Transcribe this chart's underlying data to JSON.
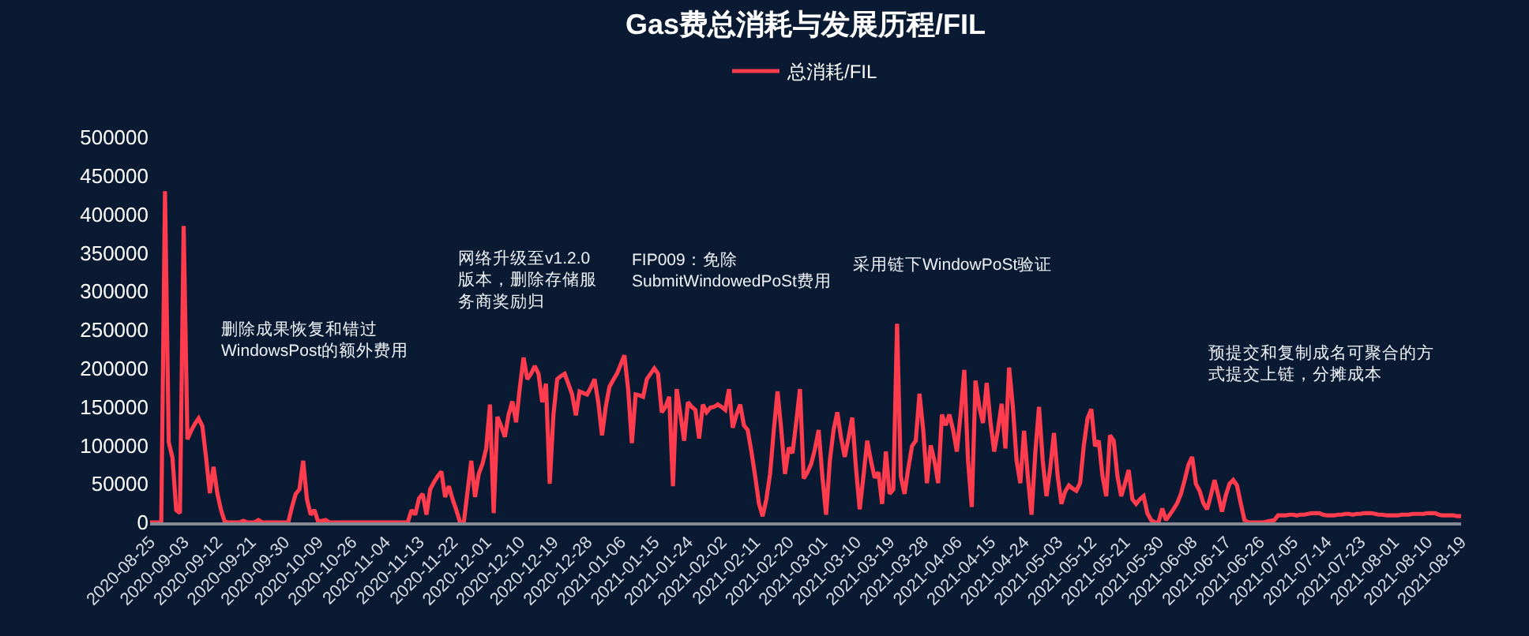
{
  "chart_data": {
    "type": "line",
    "title": "Gas费总消耗与发展历程/FIL",
    "legend": "top",
    "line_style": "solid",
    "ylim": [
      0,
      500000
    ],
    "yticks": [
      0,
      50000,
      100000,
      150000,
      200000,
      250000,
      300000,
      350000,
      400000,
      450000,
      500000
    ],
    "categories": [
      "2020-08-25",
      null,
      null,
      null,
      null,
      null,
      null,
      null,
      null,
      "2020-09-03",
      null,
      null,
      null,
      null,
      null,
      null,
      null,
      null,
      "2020-09-12",
      null,
      null,
      null,
      null,
      null,
      null,
      null,
      null,
      "2020-09-21",
      null,
      null,
      null,
      null,
      null,
      null,
      null,
      null,
      "2020-09-30",
      null,
      null,
      null,
      null,
      null,
      null,
      null,
      null,
      "2020-10-09",
      null,
      null,
      null,
      null,
      null,
      null,
      null,
      null,
      "2020-10-26",
      null,
      null,
      null,
      null,
      null,
      null,
      null,
      null,
      "2020-11-04",
      null,
      null,
      null,
      null,
      null,
      null,
      null,
      null,
      "2020-11-13",
      null,
      null,
      null,
      null,
      null,
      null,
      null,
      null,
      "2020-11-22",
      null,
      null,
      null,
      null,
      null,
      null,
      null,
      null,
      "2020-12-01",
      null,
      null,
      null,
      null,
      null,
      null,
      null,
      null,
      "2020-12-10",
      null,
      null,
      null,
      null,
      null,
      null,
      null,
      null,
      "2020-12-19",
      null,
      null,
      null,
      null,
      null,
      null,
      null,
      null,
      "2020-12-28",
      null,
      null,
      null,
      null,
      null,
      null,
      null,
      null,
      "2021-01-06",
      null,
      null,
      null,
      null,
      null,
      null,
      null,
      null,
      "2021-01-15",
      null,
      null,
      null,
      null,
      null,
      null,
      null,
      null,
      "2021-01-24",
      null,
      null,
      null,
      null,
      null,
      null,
      null,
      null,
      "2021-02-02",
      null,
      null,
      null,
      null,
      null,
      null,
      null,
      null,
      "2021-02-11",
      null,
      null,
      null,
      null,
      null,
      null,
      null,
      null,
      "2021-02-20",
      null,
      null,
      null,
      null,
      null,
      null,
      null,
      null,
      "2021-03-01",
      null,
      null,
      null,
      null,
      null,
      null,
      null,
      null,
      "2021-03-10",
      null,
      null,
      null,
      null,
      null,
      null,
      null,
      null,
      "2021-03-19",
      null,
      null,
      null,
      null,
      null,
      null,
      null,
      null,
      "2021-03-28",
      null,
      null,
      null,
      null,
      null,
      null,
      null,
      null,
      "2021-04-06",
      null,
      null,
      null,
      null,
      null,
      null,
      null,
      null,
      "2021-04-15",
      null,
      null,
      null,
      null,
      null,
      null,
      null,
      null,
      "2021-04-24",
      null,
      null,
      null,
      null,
      null,
      null,
      null,
      null,
      "2021-05-03",
      null,
      null,
      null,
      null,
      null,
      null,
      null,
      null,
      "2021-05-12",
      null,
      null,
      null,
      null,
      null,
      null,
      null,
      null,
      "2021-05-21",
      null,
      null,
      null,
      null,
      null,
      null,
      null,
      null,
      "2021-05-30",
      null,
      null,
      null,
      null,
      null,
      null,
      null,
      null,
      "2021-06-08",
      null,
      null,
      null,
      null,
      null,
      null,
      null,
      null,
      "2021-06-17",
      null,
      null,
      null,
      null,
      null,
      null,
      null,
      null,
      "2021-06-26",
      null,
      null,
      null,
      null,
      null,
      null,
      null,
      null,
      "2021-07-05",
      null,
      null,
      null,
      null,
      null,
      null,
      null,
      null,
      "2021-07-14",
      null,
      null,
      null,
      null,
      null,
      null,
      null,
      null,
      "2021-07-23",
      null,
      null,
      null,
      null,
      null,
      null,
      null,
      null,
      "2021-08-01",
      null,
      null,
      null,
      null,
      null,
      null,
      null,
      null,
      "2021-08-10",
      null,
      null,
      null,
      null,
      null,
      null,
      null,
      null,
      "2021-08-19"
    ],
    "annotations": [
      "删除成果恢复和错过WindowsPost的额外费用",
      "网络升级至v1.2.0版本，删除存储服务商奖励归",
      "FIP009：免除SubmitWindowedPoSt费用",
      "采用链下WindowPoSt验证",
      "预提交和复制成名可聚合的方式提交上链，分摊成本"
    ],
    "series": [
      {
        "name": "总消耗/FIL",
        "color": "#ff3b4e",
        "values": [
          0,
          0,
          0,
          0,
          430000,
          104000,
          84000,
          16000,
          12000,
          385000,
          108000,
          119000,
          128000,
          135000,
          125000,
          84000,
          38000,
          72000,
          38000,
          16000,
          1000,
          0,
          0,
          0,
          0,
          2000,
          0,
          0,
          0,
          3000,
          0,
          0,
          0,
          0,
          0,
          0,
          0,
          0,
          20000,
          37000,
          43000,
          80000,
          30000,
          10000,
          16000,
          1000,
          2000,
          3000,
          0,
          0,
          0,
          0,
          0,
          0,
          0,
          0,
          0,
          0,
          0,
          0,
          0,
          0,
          0,
          0,
          0,
          0,
          0,
          0,
          0,
          0,
          16000,
          10000,
          31000,
          37000,
          10000,
          43000,
          52000,
          60000,
          66000,
          33000,
          47000,
          30000,
          16000,
          0,
          0,
          40000,
          80000,
          33000,
          63000,
          76000,
          96000,
          153000,
          12000,
          137000,
          125000,
          111000,
          140000,
          157000,
          130000,
          175000,
          214000,
          186000,
          193000,
          203000,
          193000,
          156000,
          180000,
          50000,
          140000,
          186000,
          190000,
          193000,
          180000,
          166000,
          139000,
          170000,
          168000,
          166000,
          175000,
          186000,
          156000,
          113000,
          150000,
          176000,
          185000,
          193000,
          205000,
          217000,
          173000,
          103000,
          166000,
          165000,
          163000,
          186000,
          193000,
          200000,
          193000,
          143000,
          150000,
          163000,
          47000,
          173000,
          140000,
          106000,
          156000,
          150000,
          146000,
          109000,
          153000,
          143000,
          149000,
          150000,
          153000,
          150000,
          146000,
          173000,
          123000,
          140000,
          153000,
          126000,
          120000,
          92000,
          60000,
          25000,
          8000,
          30000,
          63000,
          120000,
          170000,
          120000,
          63000,
          97000,
          90000,
          130000,
          173000,
          57000,
          65000,
          76000,
          95000,
          120000,
          60000,
          10000,
          80000,
          120000,
          143000,
          110000,
          85000,
          110000,
          136000,
          70000,
          17000,
          60000,
          106000,
          80000,
          58000,
          65000,
          24000,
          92000,
          37000,
          43000,
          258000,
          60000,
          37000,
          70000,
          99000,
          106000,
          167000,
          120000,
          51000,
          100000,
          80000,
          51000,
          140000,
          126000,
          140000,
          120000,
          92000,
          140000,
          198000,
          80000,
          20000,
          184000,
          150000,
          129000,
          181000,
          130000,
          92000,
          120000,
          154000,
          96000,
          201000,
          150000,
          80000,
          51000,
          119000,
          60000,
          10000,
          90000,
          150000,
          80000,
          34000,
          70000,
          116000,
          60000,
          24000,
          40000,
          48000,
          44000,
          41000,
          51000,
          100000,
          135000,
          147000,
          99000,
          106000,
          60000,
          34000,
          113000,
          106000,
          60000,
          34000,
          50000,
          68000,
          30000,
          24000,
          30000,
          34000,
          12000,
          3000,
          0,
          0,
          18000,
          3000,
          10000,
          17000,
          25000,
          37000,
          55000,
          75000,
          85000,
          50000,
          41000,
          25000,
          17000,
          35000,
          55000,
          35000,
          14000,
          35000,
          50000,
          55000,
          48000,
          25000,
          3000,
          0,
          0,
          0,
          0,
          0,
          1000,
          2000,
          3000,
          9000,
          9000,
          9000,
          10000,
          10000,
          9000,
          10000,
          10000,
          11000,
          12000,
          12000,
          12000,
          10000,
          9000,
          9000,
          9000,
          10000,
          10000,
          11000,
          11000,
          10000,
          11000,
          11000,
          12000,
          12000,
          12000,
          11000,
          10000,
          10000,
          9000,
          9000,
          9000,
          9000,
          10000,
          10000,
          10000,
          11000,
          11000,
          11000,
          11000,
          12000,
          12000,
          12000,
          10000,
          9000,
          9000,
          9000,
          9000,
          8000,
          8000
        ]
      }
    ]
  }
}
